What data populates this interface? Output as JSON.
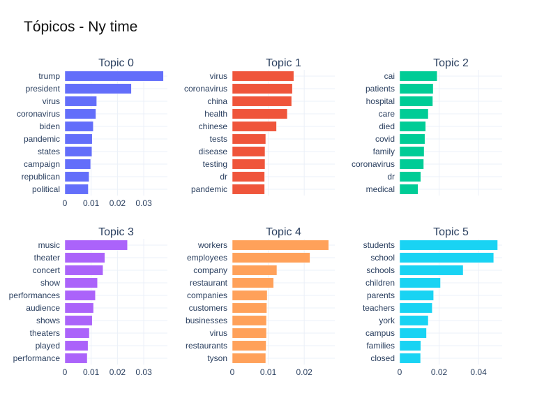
{
  "chart_data": {
    "type": "bar",
    "orientation": "horizontal",
    "title": "Tópicos - Ny time",
    "panels": [
      {
        "title": "Topic 0",
        "color": "#636efa",
        "xlim": [
          0,
          0.039
        ],
        "xticks": [
          0,
          0.01,
          0.02,
          0.03
        ],
        "xtick_labels": [
          "0",
          "0.01",
          "0.02",
          "0.03"
        ],
        "show_xticks": true,
        "categories": [
          "trump",
          "president",
          "virus",
          "coronavirus",
          "biden",
          "pandemic",
          "states",
          "campaign",
          "republican",
          "political"
        ],
        "values": [
          0.0375,
          0.0253,
          0.0121,
          0.0118,
          0.0108,
          0.0104,
          0.0103,
          0.0098,
          0.0092,
          0.0089
        ]
      },
      {
        "title": "Topic 1",
        "color": "#ef553b",
        "xlim": [
          0,
          0.0285
        ],
        "xticks": [
          0,
          0.01,
          0.02
        ],
        "xtick_labels": [
          "0",
          "0.01",
          "0.02"
        ],
        "show_xticks": false,
        "categories": [
          "virus",
          "coronavirus",
          "china",
          "health",
          "chinese",
          "tests",
          "disease",
          "testing",
          "dr",
          "pandemic"
        ],
        "values": [
          0.0171,
          0.0167,
          0.0165,
          0.0153,
          0.0123,
          0.0093,
          0.0091,
          0.0091,
          0.009,
          0.009
        ]
      },
      {
        "title": "Topic 2",
        "color": "#00cc96",
        "xlim": [
          0,
          0.052
        ],
        "xticks": [
          0,
          0.02,
          0.04
        ],
        "xtick_labels": [
          "0",
          "0.02",
          "0.04"
        ],
        "show_xticks": false,
        "categories": [
          "cai",
          "patients",
          "hospital",
          "care",
          "died",
          "covid",
          "family",
          "coronavirus",
          "dr",
          "medical"
        ],
        "values": [
          0.019,
          0.017,
          0.0168,
          0.0145,
          0.0132,
          0.0128,
          0.0124,
          0.0122,
          0.0107,
          0.0093
        ]
      },
      {
        "title": "Topic 3",
        "color": "#ab63fa",
        "xlim": [
          0,
          0.039
        ],
        "xticks": [
          0,
          0.01,
          0.02,
          0.03
        ],
        "xtick_labels": [
          "0",
          "0.01",
          "0.02",
          "0.03"
        ],
        "show_xticks": true,
        "categories": [
          "music",
          "theater",
          "concert",
          "show",
          "performances",
          "audience",
          "shows",
          "theaters",
          "played",
          "performance"
        ],
        "values": [
          0.0238,
          0.0152,
          0.0145,
          0.0124,
          0.0116,
          0.0109,
          0.0104,
          0.0093,
          0.0088,
          0.0085
        ]
      },
      {
        "title": "Topic 4",
        "color": "#ffa15a",
        "xlim": [
          0,
          0.0285
        ],
        "xticks": [
          0,
          0.01,
          0.02
        ],
        "xtick_labels": [
          "0",
          "0.01",
          "0.02"
        ],
        "show_xticks": true,
        "categories": [
          "workers",
          "employees",
          "company",
          "restaurant",
          "companies",
          "customers",
          "businesses",
          "virus",
          "restaurants",
          "tyson"
        ],
        "values": [
          0.0268,
          0.0216,
          0.0124,
          0.0115,
          0.0097,
          0.0096,
          0.0095,
          0.0095,
          0.0094,
          0.0093
        ]
      },
      {
        "title": "Topic 5",
        "color": "#19d3f3",
        "xlim": [
          0,
          0.052
        ],
        "xticks": [
          0,
          0.02,
          0.04
        ],
        "xtick_labels": [
          "0",
          "0.02",
          "0.04"
        ],
        "show_xticks": true,
        "categories": [
          "students",
          "school",
          "schools",
          "children",
          "parents",
          "teachers",
          "york",
          "campus",
          "families",
          "closed"
        ],
        "values": [
          0.0497,
          0.0477,
          0.0322,
          0.0207,
          0.0172,
          0.0165,
          0.0145,
          0.0136,
          0.0107,
          0.0106
        ]
      }
    ]
  }
}
